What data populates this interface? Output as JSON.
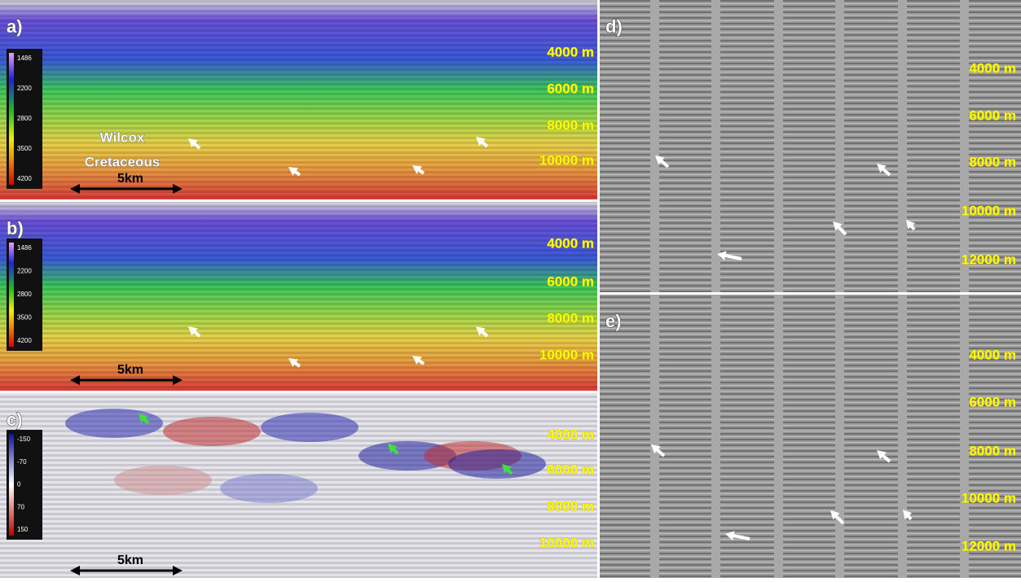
{
  "panels": [
    {
      "label": "a)",
      "colorbar": [
        "1486",
        "2200",
        "2800",
        "3500",
        "4200"
      ],
      "depths": [
        "4000 m",
        "6000 m",
        "8000 m",
        "10000 m"
      ],
      "annotations": [
        "Wilcox",
        "Cretaceous"
      ],
      "scale_bar": "5km"
    },
    {
      "label": "b)",
      "colorbar": [
        "1486",
        "2200",
        "2800",
        "3500",
        "4200"
      ],
      "depths": [
        "4000 m",
        "6000 m",
        "8000 m",
        "10000 m"
      ],
      "scale_bar": "5km"
    },
    {
      "label": "c)",
      "colorbar": [
        "-150",
        "-70",
        "0",
        "70",
        "150"
      ],
      "depths": [
        "4000 m",
        "6000 m",
        "8000 m",
        "10000 m"
      ],
      "scale_bar": "5km"
    },
    {
      "label": "d)",
      "depths": [
        "4000 m",
        "6000 m",
        "8000 m",
        "10000 m",
        "12000 m"
      ]
    },
    {
      "label": "e)",
      "depths": [
        "4000 m",
        "6000 m",
        "8000 m",
        "10000 m",
        "12000 m"
      ]
    }
  ]
}
